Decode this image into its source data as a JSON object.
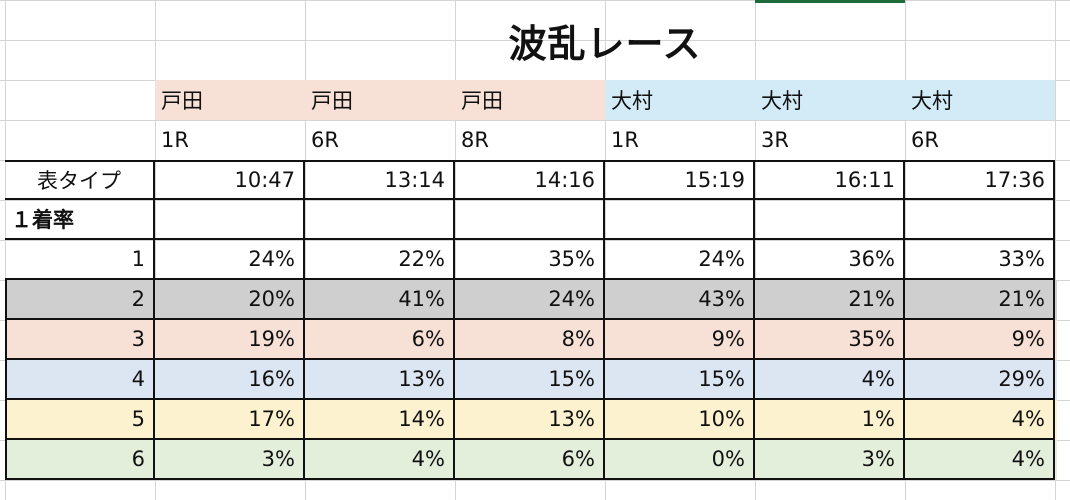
{
  "title": "波乱レース",
  "venues": [
    "戸田",
    "戸田",
    "戸田",
    "大村",
    "大村",
    "大村"
  ],
  "races": [
    "1R",
    "6R",
    "8R",
    "1R",
    "3R",
    "6R"
  ],
  "type_row": {
    "label": "表タイプ",
    "times": [
      "10:47",
      "13:14",
      "14:16",
      "15:19",
      "16:11",
      "17:36"
    ]
  },
  "section_label": "１着率",
  "rows": [
    {
      "lane": "1",
      "values": [
        "24%",
        "22%",
        "35%",
        "24%",
        "36%",
        "33%"
      ],
      "color": "#ffffff"
    },
    {
      "lane": "2",
      "values": [
        "20%",
        "41%",
        "24%",
        "43%",
        "21%",
        "21%"
      ],
      "color": "#d0cfd0"
    },
    {
      "lane": "3",
      "values": [
        "19%",
        "6%",
        "8%",
        "9%",
        "35%",
        "9%"
      ],
      "color": "#f7e1d6"
    },
    {
      "lane": "4",
      "values": [
        "16%",
        "13%",
        "15%",
        "15%",
        "4%",
        "29%"
      ],
      "color": "#dce6f3"
    },
    {
      "lane": "5",
      "values": [
        "17%",
        "14%",
        "13%",
        "10%",
        "1%",
        "4%"
      ],
      "color": "#fdf2cf"
    },
    {
      "lane": "6",
      "values": [
        "3%",
        "4%",
        "6%",
        "0%",
        "3%",
        "4%"
      ],
      "color": "#e3eedb"
    }
  ],
  "colors": {
    "toda_header": "#f7e1d6",
    "omura_header": "#d2ebf7"
  }
}
